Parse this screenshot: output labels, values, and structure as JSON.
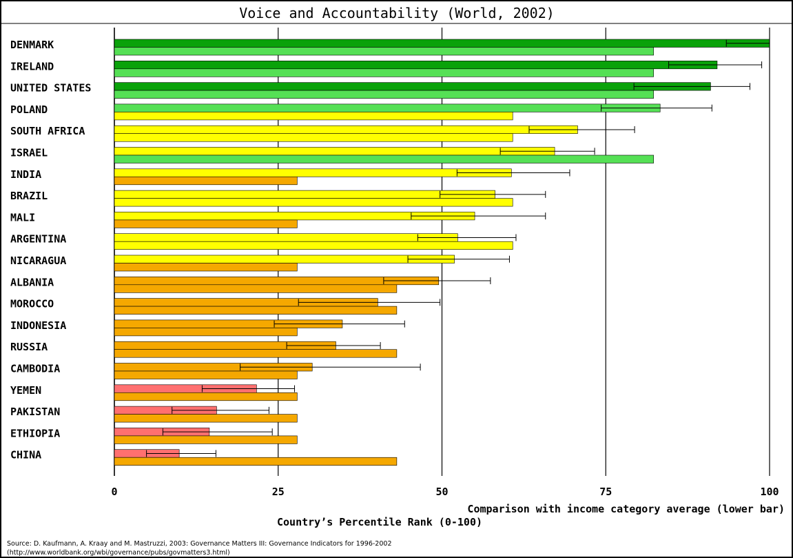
{
  "chart_data": {
    "type": "bar",
    "title": "Voice and Accountability (World, 2002)",
    "xlim": [
      0,
      100
    ],
    "ticks": [
      "0",
      "25",
      "50",
      "75",
      "100"
    ],
    "tick_values": [
      0,
      25,
      50,
      75,
      100
    ],
    "grid": true,
    "lower_bar_note": "Comparison with income category average (lower bar)",
    "xlabel": "Country’s Percentile Rank (0-100)",
    "categories": [
      "DENMARK",
      "IRELAND",
      "UNITED STATES",
      "POLAND",
      "SOUTH AFRICA",
      "ISRAEL",
      "INDIA",
      "BRAZIL",
      "MALI",
      "ARGENTINA",
      "NICARAGUA",
      "ALBANIA",
      "MOROCCO",
      "INDONESIA",
      "RUSSIA",
      "CAMBODIA",
      "YEMEN",
      "PAKISTAN",
      "ETHIOPIA",
      "CHINA"
    ],
    "country_rank": [
      100,
      92,
      91,
      83.3,
      70.7,
      67.2,
      60.6,
      58.1,
      55,
      52.4,
      51.9,
      49.5,
      40.2,
      34.8,
      33.8,
      30.2,
      21.7,
      15.6,
      14.5,
      9.9
    ],
    "ci_low": [
      93.4,
      84.6,
      79.3,
      74.3,
      63.3,
      58.9,
      52.3,
      49.7,
      45.3,
      46.3,
      44.8,
      41.1,
      28.1,
      24.4,
      26.3,
      19.2,
      13.4,
      8.8,
      7.4,
      4.9
    ],
    "ci_high": [
      100,
      98.8,
      97,
      91.2,
      79.4,
      73.3,
      69.5,
      65.8,
      65.8,
      61.3,
      60.3,
      57.4,
      49.7,
      44.3,
      40.6,
      46.7,
      27.5,
      23.6,
      24.1,
      15.5
    ],
    "income_avg": [
      82.3,
      82.3,
      82.3,
      60.8,
      60.8,
      82.3,
      27.9,
      60.8,
      27.9,
      60.8,
      27.9,
      43.1,
      43.1,
      27.9,
      43.1,
      27.9,
      27.9,
      27.9,
      27.9,
      43.1
    ],
    "colors": {
      "dark_green": "#0aa20a",
      "light_green": "#55e055",
      "yellow": "#ffff00",
      "orange": "#f5a800",
      "red": "#ff7070",
      "grid": "#000000"
    }
  },
  "source": {
    "line1": "Source: D. Kaufmann, A. Kraay and M. Mastruzzi, 2003: Governance Matters III: Governance Indicators for 1996-2002",
    "line2": "(http://www.worldbank.org/wbi/governance/pubs/govmatters3.html)"
  }
}
